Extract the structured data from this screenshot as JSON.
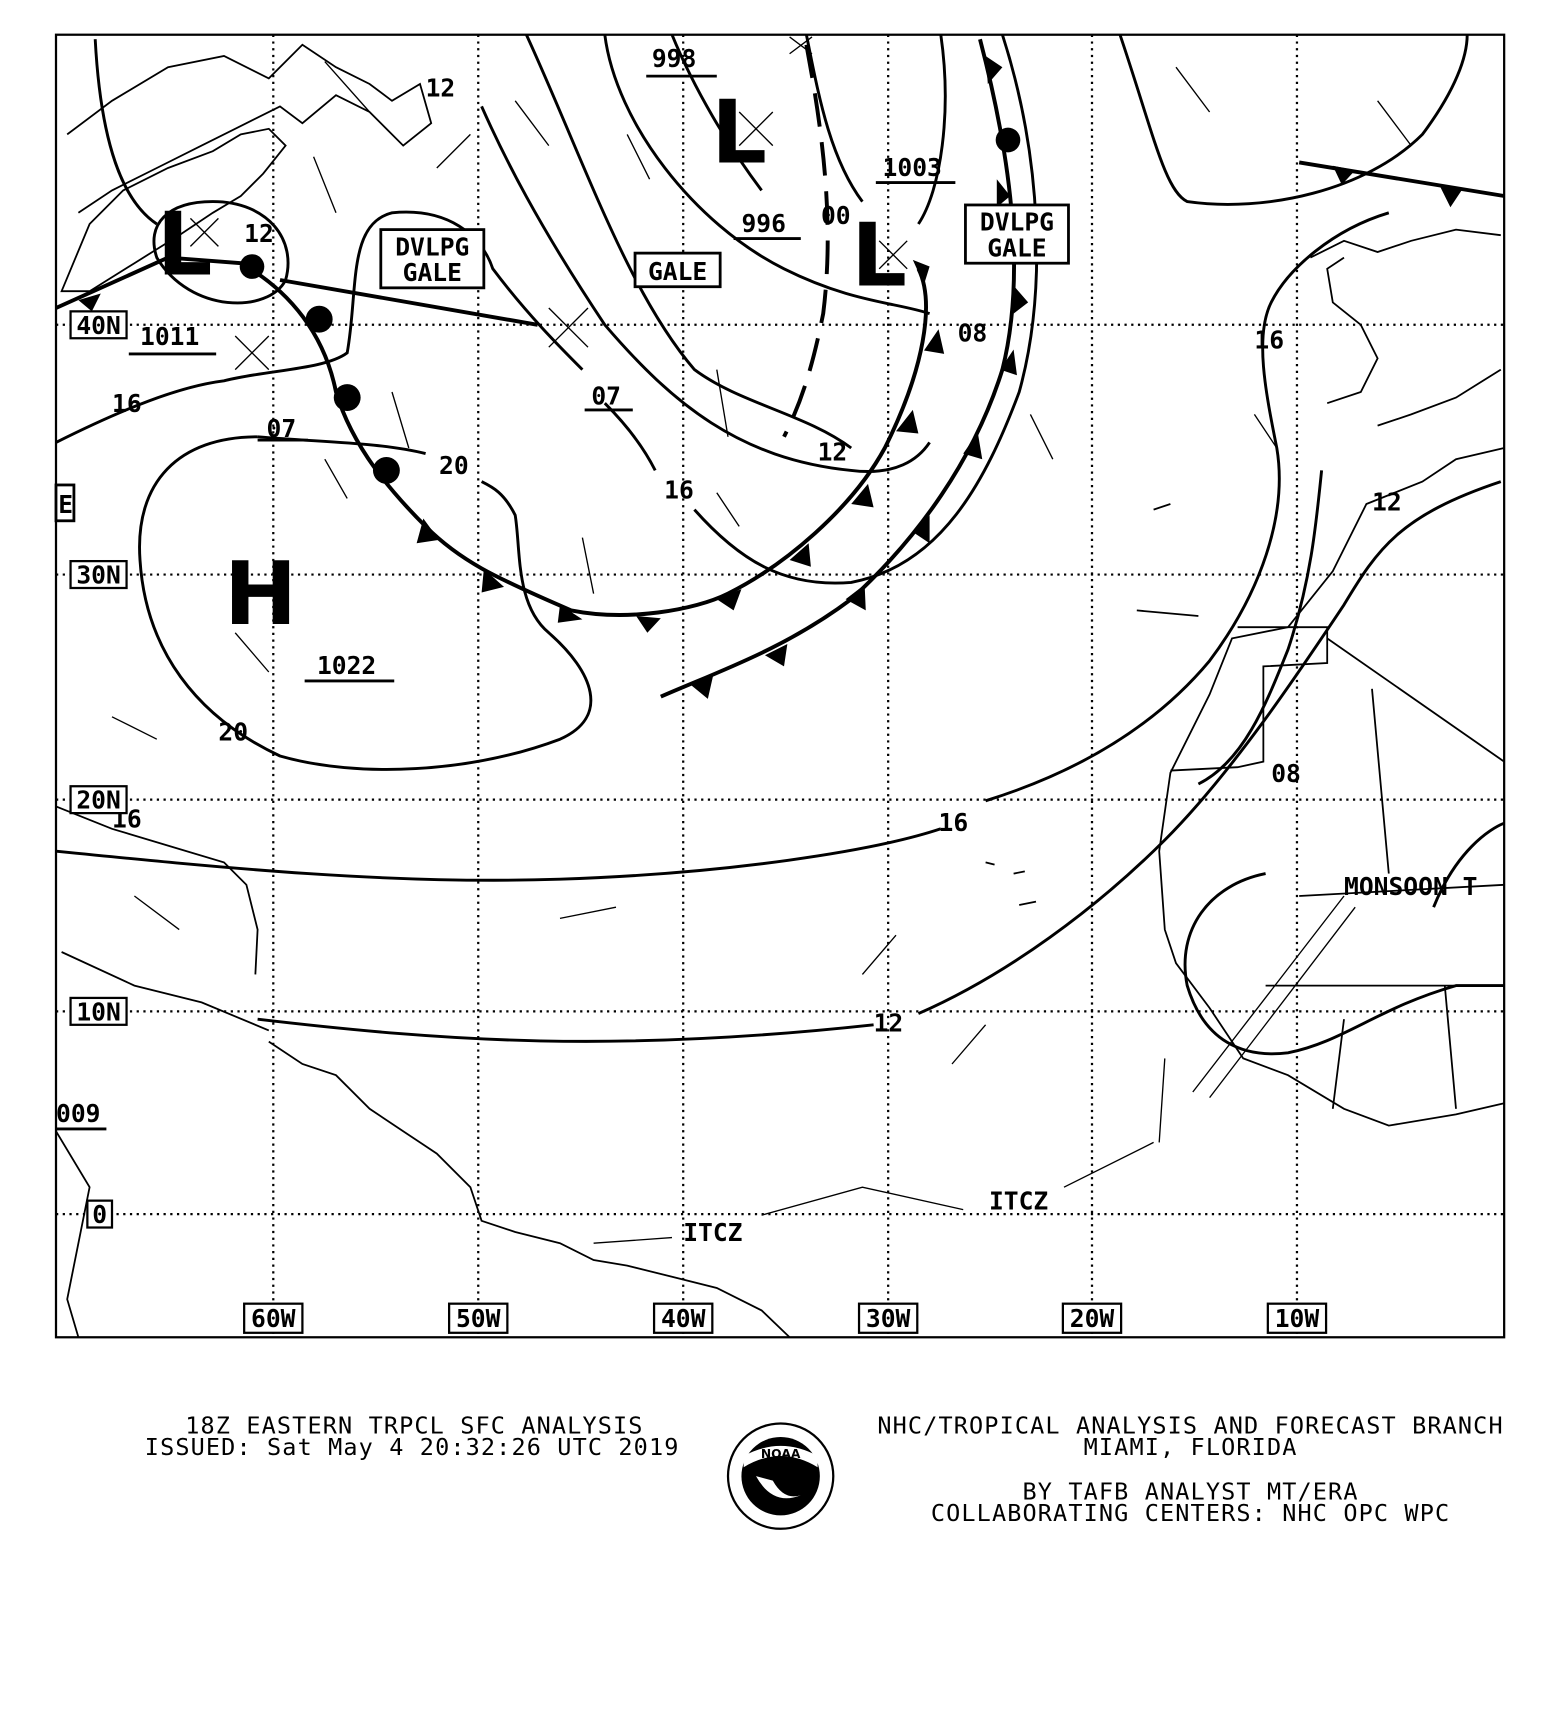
{
  "map": {
    "latitude_labels": [
      "40N",
      "30N",
      "20N",
      "10N",
      "0"
    ],
    "longitude_labels": [
      "60W",
      "50W",
      "40W",
      "30W",
      "20W",
      "10W"
    ],
    "pressure_centers": [
      {
        "type": "L",
        "pressure": "1011"
      },
      {
        "type": "L",
        "pressure": "998"
      },
      {
        "type": "L",
        "pressure": "1003"
      },
      {
        "type": "H",
        "pressure": "1022"
      }
    ],
    "pressure_labels": {
      "p996": "996",
      "p1009": "009"
    },
    "isobar_labels": [
      "12",
      "12",
      "16",
      "07",
      "20",
      "07",
      "16",
      "12",
      "00",
      "08",
      "20",
      "16",
      "16",
      "12",
      "16",
      "12",
      "08"
    ],
    "boxes": {
      "dvlpg_gale_1": "DVLPG GALE",
      "dvlpg_gale_2": "DVLPG GALE",
      "gale": "GALE",
      "partial_left": "E"
    },
    "features": {
      "itcz_1": "ITCZ",
      "itcz_2": "ITCZ",
      "monsoon": "MONSOON T"
    }
  },
  "footer": {
    "title": "18Z EASTERN TRPCL SFC ANALYSIS",
    "issued": "ISSUED: Sat May 4 20:32:26 UTC 2019",
    "branch": "NHC/TROPICAL ANALYSIS AND FORECAST BRANCH",
    "location": "MIAMI,  FLORIDA",
    "analyst": "BY TAFB ANALYST  MT/ERA",
    "collab": "COLLABORATING CENTERS: NHC OPC WPC",
    "logo_text": "NOAA"
  }
}
